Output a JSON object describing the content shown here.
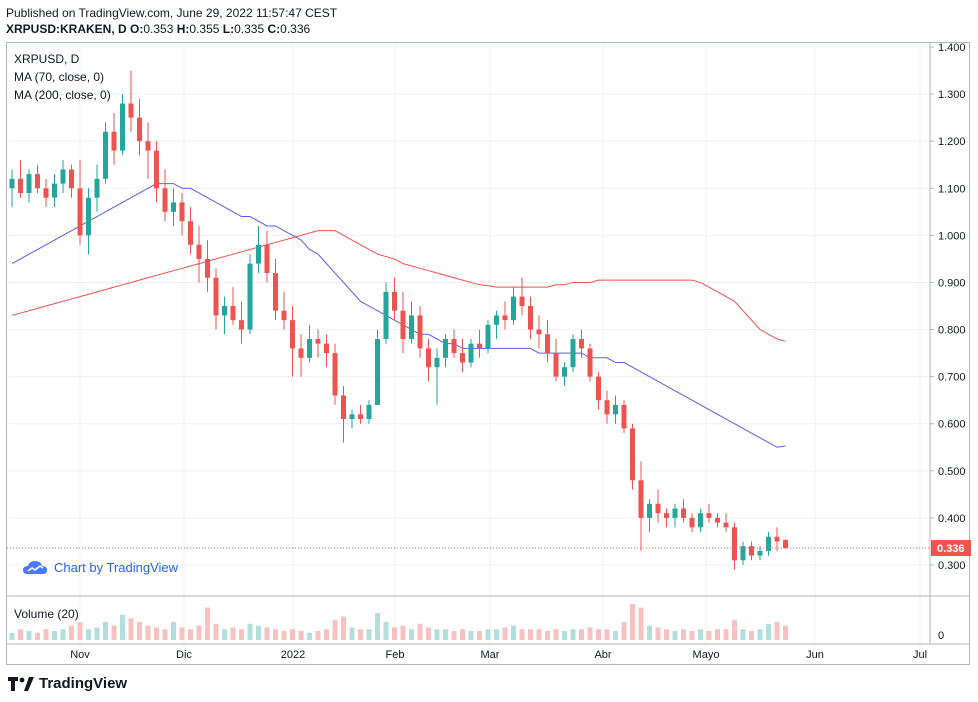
{
  "header": {
    "published": "Published on TradingView.com, June 29, 2022 11:57:47 CEST",
    "symbol": "XRPUSD:KRAKEN, D",
    "o_label": "O:",
    "o": "0.353",
    "h_label": "H:",
    "h": "0.355",
    "l_label": "L:",
    "l": "0.335",
    "c_label": "C:",
    "c": "0.336"
  },
  "legend": {
    "symbol": "XRPUSD, D",
    "ma70": "MA (70, close, 0)",
    "ma200": "MA (200, close, 0)"
  },
  "watermark": "Chart by TradingView",
  "volume_label": "Volume (20)",
  "footer_brand": "TradingView",
  "colors": {
    "up": "#26a69a",
    "down": "#ef5350",
    "ma70": "#5b5ce6",
    "ma200": "#f0504e",
    "vol_up": "#b2dfdb",
    "vol_down": "#f7c1c1",
    "price_tag": "#ef5350"
  },
  "chart_data": {
    "type": "candlestick",
    "y_axis": {
      "ticks": [
        "1.400",
        "1.300",
        "1.200",
        "1.100",
        "1.000",
        "0.900",
        "0.800",
        "0.700",
        "0.600",
        "0.500",
        "0.400",
        "0.300"
      ],
      "range": [
        0.25,
        1.41
      ]
    },
    "x_axis": {
      "ticks": [
        "Nov",
        "Dic",
        "2022",
        "Feb",
        "Mar",
        "Abr",
        "Mayo",
        "Jun",
        "Jul"
      ]
    },
    "last_price": "0.336",
    "volume_axis": {
      "ticks": [
        "0"
      ]
    },
    "ohlc": [
      [
        1.1,
        1.14,
        1.06,
        1.12
      ],
      [
        1.12,
        1.16,
        1.08,
        1.09
      ],
      [
        1.09,
        1.14,
        1.07,
        1.13
      ],
      [
        1.13,
        1.15,
        1.09,
        1.1
      ],
      [
        1.1,
        1.12,
        1.06,
        1.08
      ],
      [
        1.08,
        1.13,
        1.06,
        1.11
      ],
      [
        1.11,
        1.16,
        1.09,
        1.14
      ],
      [
        1.14,
        1.15,
        1.08,
        1.1
      ],
      [
        1.1,
        1.16,
        0.98,
        1.0
      ],
      [
        1.0,
        1.1,
        0.96,
        1.08
      ],
      [
        1.08,
        1.15,
        1.05,
        1.12
      ],
      [
        1.12,
        1.24,
        1.11,
        1.22
      ],
      [
        1.22,
        1.26,
        1.15,
        1.18
      ],
      [
        1.18,
        1.3,
        1.17,
        1.28
      ],
      [
        1.28,
        1.35,
        1.22,
        1.25
      ],
      [
        1.25,
        1.29,
        1.17,
        1.2
      ],
      [
        1.2,
        1.24,
        1.12,
        1.18
      ],
      [
        1.18,
        1.2,
        1.07,
        1.1
      ],
      [
        1.1,
        1.14,
        1.03,
        1.05
      ],
      [
        1.05,
        1.1,
        1.02,
        1.07
      ],
      [
        1.07,
        1.09,
        1.0,
        1.03
      ],
      [
        1.03,
        1.06,
        0.96,
        0.98
      ],
      [
        0.98,
        1.02,
        0.9,
        0.95
      ],
      [
        0.95,
        0.99,
        0.88,
        0.91
      ],
      [
        0.91,
        0.93,
        0.8,
        0.83
      ],
      [
        0.83,
        0.87,
        0.79,
        0.85
      ],
      [
        0.85,
        0.89,
        0.81,
        0.82
      ],
      [
        0.82,
        0.86,
        0.77,
        0.8
      ],
      [
        0.8,
        0.96,
        0.79,
        0.94
      ],
      [
        0.94,
        1.02,
        0.92,
        0.98
      ],
      [
        0.98,
        1.01,
        0.9,
        0.92
      ],
      [
        0.92,
        0.95,
        0.82,
        0.84
      ],
      [
        0.84,
        0.88,
        0.8,
        0.82
      ],
      [
        0.82,
        0.85,
        0.7,
        0.76
      ],
      [
        0.76,
        0.79,
        0.7,
        0.74
      ],
      [
        0.74,
        0.81,
        0.73,
        0.78
      ],
      [
        0.78,
        0.8,
        0.74,
        0.77
      ],
      [
        0.77,
        0.79,
        0.72,
        0.75
      ],
      [
        0.75,
        0.77,
        0.64,
        0.66
      ],
      [
        0.66,
        0.68,
        0.56,
        0.61
      ],
      [
        0.61,
        0.63,
        0.59,
        0.62
      ],
      [
        0.62,
        0.64,
        0.6,
        0.61
      ],
      [
        0.61,
        0.65,
        0.6,
        0.64
      ],
      [
        0.64,
        0.8,
        0.64,
        0.78
      ],
      [
        0.78,
        0.9,
        0.77,
        0.88
      ],
      [
        0.88,
        0.91,
        0.82,
        0.84
      ],
      [
        0.84,
        0.88,
        0.75,
        0.78
      ],
      [
        0.78,
        0.86,
        0.77,
        0.83
      ],
      [
        0.83,
        0.85,
        0.74,
        0.76
      ],
      [
        0.76,
        0.78,
        0.69,
        0.72
      ],
      [
        0.72,
        0.76,
        0.64,
        0.74
      ],
      [
        0.74,
        0.79,
        0.72,
        0.78
      ],
      [
        0.78,
        0.8,
        0.74,
        0.75
      ],
      [
        0.75,
        0.78,
        0.71,
        0.73
      ],
      [
        0.73,
        0.78,
        0.72,
        0.77
      ],
      [
        0.77,
        0.8,
        0.74,
        0.76
      ],
      [
        0.76,
        0.82,
        0.75,
        0.81
      ],
      [
        0.81,
        0.84,
        0.78,
        0.83
      ],
      [
        0.83,
        0.86,
        0.8,
        0.82
      ],
      [
        0.82,
        0.89,
        0.81,
        0.87
      ],
      [
        0.87,
        0.91,
        0.83,
        0.85
      ],
      [
        0.85,
        0.87,
        0.78,
        0.8
      ],
      [
        0.8,
        0.83,
        0.76,
        0.79
      ],
      [
        0.79,
        0.82,
        0.73,
        0.75
      ],
      [
        0.75,
        0.78,
        0.69,
        0.7
      ],
      [
        0.7,
        0.73,
        0.68,
        0.72
      ],
      [
        0.72,
        0.79,
        0.71,
        0.78
      ],
      [
        0.78,
        0.8,
        0.74,
        0.76
      ],
      [
        0.76,
        0.77,
        0.69,
        0.7
      ],
      [
        0.7,
        0.71,
        0.63,
        0.65
      ],
      [
        0.65,
        0.67,
        0.6,
        0.62
      ],
      [
        0.62,
        0.66,
        0.6,
        0.64
      ],
      [
        0.64,
        0.65,
        0.58,
        0.59
      ],
      [
        0.59,
        0.6,
        0.46,
        0.48
      ],
      [
        0.48,
        0.52,
        0.33,
        0.4
      ],
      [
        0.4,
        0.44,
        0.37,
        0.43
      ],
      [
        0.43,
        0.46,
        0.39,
        0.41
      ],
      [
        0.41,
        0.42,
        0.38,
        0.4
      ],
      [
        0.4,
        0.43,
        0.38,
        0.42
      ],
      [
        0.42,
        0.44,
        0.39,
        0.4
      ],
      [
        0.4,
        0.41,
        0.37,
        0.38
      ],
      [
        0.38,
        0.42,
        0.37,
        0.41
      ],
      [
        0.41,
        0.43,
        0.39,
        0.4
      ],
      [
        0.4,
        0.41,
        0.38,
        0.39
      ],
      [
        0.39,
        0.41,
        0.37,
        0.38
      ],
      [
        0.38,
        0.39,
        0.29,
        0.31
      ],
      [
        0.31,
        0.35,
        0.3,
        0.34
      ],
      [
        0.34,
        0.35,
        0.31,
        0.32
      ],
      [
        0.32,
        0.34,
        0.31,
        0.33
      ],
      [
        0.33,
        0.37,
        0.32,
        0.36
      ],
      [
        0.36,
        0.38,
        0.33,
        0.35
      ],
      [
        0.353,
        0.355,
        0.335,
        0.336
      ]
    ],
    "volume": [
      0.2,
      0.3,
      0.25,
      0.2,
      0.3,
      0.25,
      0.3,
      0.4,
      0.5,
      0.3,
      0.35,
      0.5,
      0.4,
      0.7,
      0.6,
      0.5,
      0.4,
      0.35,
      0.3,
      0.5,
      0.35,
      0.3,
      0.4,
      0.9,
      0.45,
      0.3,
      0.35,
      0.3,
      0.45,
      0.4,
      0.35,
      0.3,
      0.25,
      0.3,
      0.25,
      0.2,
      0.25,
      0.3,
      0.55,
      0.65,
      0.35,
      0.3,
      0.3,
      0.75,
      0.5,
      0.35,
      0.4,
      0.3,
      0.45,
      0.35,
      0.3,
      0.3,
      0.25,
      0.3,
      0.25,
      0.25,
      0.3,
      0.3,
      0.35,
      0.4,
      0.3,
      0.3,
      0.3,
      0.25,
      0.3,
      0.25,
      0.3,
      0.3,
      0.35,
      0.3,
      0.3,
      0.25,
      0.5,
      1.0,
      0.9,
      0.4,
      0.35,
      0.3,
      0.25,
      0.3,
      0.25,
      0.3,
      0.25,
      0.3,
      0.3,
      0.55,
      0.3,
      0.25,
      0.3,
      0.45,
      0.5,
      0.4
    ],
    "ma70": [
      0.94,
      0.95,
      0.96,
      0.97,
      0.98,
      0.99,
      1.0,
      1.01,
      1.02,
      1.03,
      1.04,
      1.05,
      1.06,
      1.07,
      1.08,
      1.09,
      1.1,
      1.11,
      1.11,
      1.11,
      1.1,
      1.1,
      1.09,
      1.08,
      1.07,
      1.06,
      1.05,
      1.04,
      1.04,
      1.03,
      1.02,
      1.02,
      1.01,
      1.0,
      0.99,
      0.97,
      0.96,
      0.94,
      0.92,
      0.9,
      0.88,
      0.86,
      0.85,
      0.84,
      0.83,
      0.82,
      0.81,
      0.8,
      0.79,
      0.79,
      0.78,
      0.77,
      0.77,
      0.76,
      0.76,
      0.76,
      0.76,
      0.76,
      0.76,
      0.76,
      0.76,
      0.76,
      0.75,
      0.75,
      0.75,
      0.75,
      0.75,
      0.75,
      0.74,
      0.74,
      0.74,
      0.73,
      0.73,
      0.72,
      0.71,
      0.7,
      0.69,
      0.68,
      0.67,
      0.66,
      0.65,
      0.64,
      0.63,
      0.62,
      0.61,
      0.6,
      0.59,
      0.58,
      0.57,
      0.56,
      0.55,
      0.553
    ],
    "ma200": [
      0.83,
      0.835,
      0.84,
      0.845,
      0.85,
      0.855,
      0.86,
      0.865,
      0.87,
      0.875,
      0.88,
      0.885,
      0.89,
      0.895,
      0.9,
      0.905,
      0.91,
      0.915,
      0.92,
      0.925,
      0.93,
      0.935,
      0.94,
      0.945,
      0.95,
      0.955,
      0.96,
      0.965,
      0.97,
      0.975,
      0.98,
      0.985,
      0.99,
      0.995,
      1.0,
      1.005,
      1.01,
      1.01,
      1.01,
      1.0,
      0.99,
      0.98,
      0.97,
      0.96,
      0.955,
      0.95,
      0.94,
      0.935,
      0.93,
      0.925,
      0.92,
      0.915,
      0.91,
      0.905,
      0.9,
      0.895,
      0.893,
      0.89,
      0.89,
      0.89,
      0.89,
      0.89,
      0.89,
      0.89,
      0.895,
      0.895,
      0.9,
      0.9,
      0.9,
      0.905,
      0.905,
      0.905,
      0.905,
      0.905,
      0.905,
      0.905,
      0.905,
      0.905,
      0.905,
      0.905,
      0.905,
      0.9,
      0.89,
      0.88,
      0.87,
      0.86,
      0.84,
      0.82,
      0.8,
      0.79,
      0.78,
      0.775
    ]
  }
}
